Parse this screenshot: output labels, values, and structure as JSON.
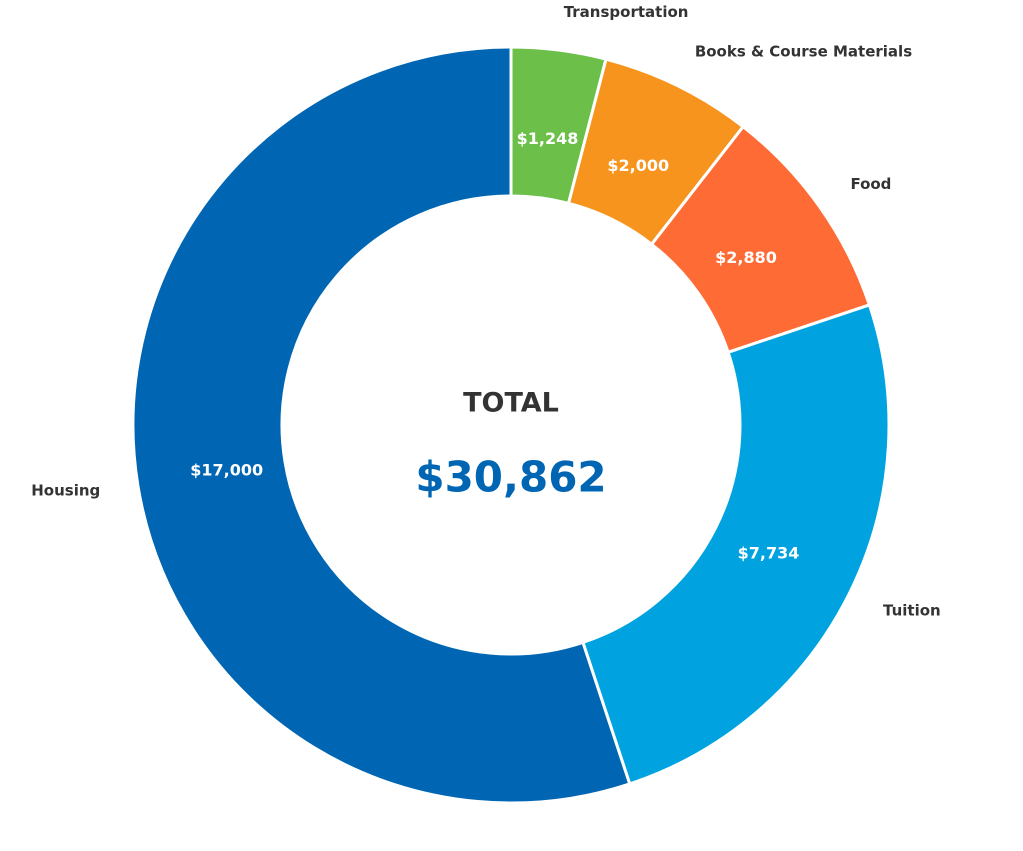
{
  "chart_data": {
    "type": "donut",
    "categories": [
      "Transportation",
      "Books & Course Materials",
      "Food",
      "Tuition",
      "Housing"
    ],
    "values": [
      1248,
      2000,
      2880,
      7734,
      17000
    ],
    "value_labels": [
      "$1,248",
      "$2,000",
      "$2,880",
      "$7,734",
      "$17,000"
    ],
    "colors": [
      "#6cc04a",
      "#f7941d",
      "#ff6b35",
      "#00a3e0",
      "#0066b3"
    ],
    "center_title": "TOTAL",
    "total": {
      "value": 30862,
      "label": "$30,862"
    }
  }
}
